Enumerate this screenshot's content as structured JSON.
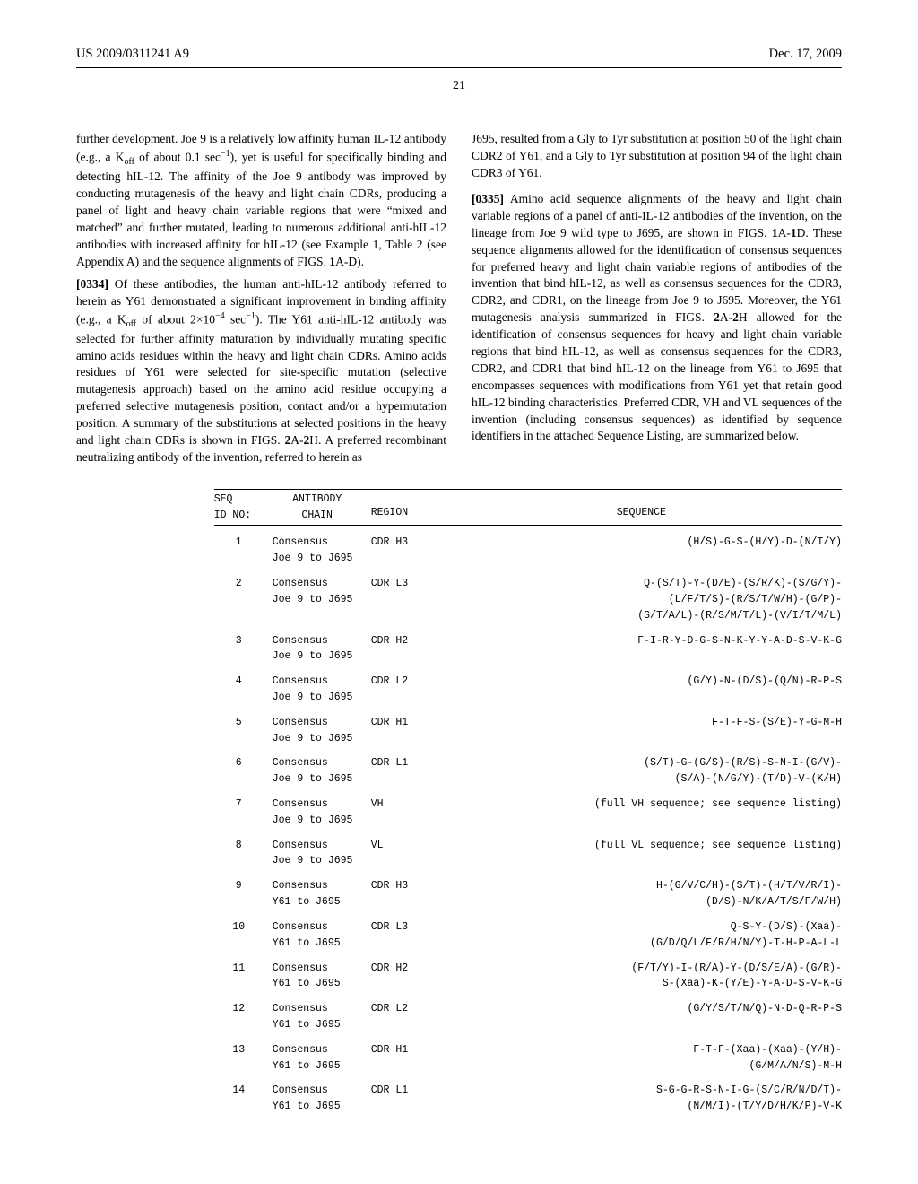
{
  "header": {
    "pubNo": "US 2009/0311241 A9",
    "date": "Dec. 17, 2009"
  },
  "pageNumber": "21",
  "col1": {
    "p1": "further development. Joe 9 is a relatively low affinity human IL-12 antibody (e.g., a K",
    "p1sub": "off",
    "p1b": " of about 0.1 sec",
    "p1sup": "−1",
    "p1c": "), yet is useful for specifically binding and detecting hIL-12. The affinity of the Joe 9 antibody was improved by conducting mutagenesis of the heavy and light chain CDRs, producing a panel of light and heavy chain variable regions that were “mixed and matched” and further mutated, leading to numerous additional anti-hIL-12 antibodies with increased affinity for hIL-12 (see Example 1, Table 2 (see Appendix A) and the sequence alignments of FIGS. ",
    "p1d": "1",
    "p1e": "A-D).",
    "p2num": "[0334]",
    "p2a": " Of these antibodies, the human anti-hIL-12 antibody referred to herein as Y61 demonstrated a significant improvement in binding affinity (e.g., a K",
    "p2sub": "off",
    "p2b": " of about 2×10",
    "p2sup1": "−4",
    "p2c": " sec",
    "p2sup2": "−1",
    "p2d": "). The Y61 anti-hIL-12 antibody was selected for further affinity maturation by individually mutating specific amino acids residues within the heavy and light chain CDRs. Amino acids residues of Y61 were selected for site-specific mutation (selective mutagenesis approach) based on the amino acid residue occupying a preferred selective mutagenesis position, contact and/or a hypermutation position. A summary of the substitutions at selected positions in the heavy and light chain CDRs is shown in FIGS. ",
    "p2e": "2",
    "p2f": "A-",
    "p2g": "2",
    "p2h": "H. A preferred recombinant neutralizing antibody of the invention, referred to herein as"
  },
  "col2": {
    "p1": "J695, resulted from a Gly to Tyr substitution at position 50 of the light chain CDR2 of Y61, and a Gly to Tyr substitution at position 94 of the light chain CDR3 of Y61.",
    "p2num": "[0335]",
    "p2": " Amino acid sequence alignments of the heavy and light chain variable regions of a panel of anti-IL-12 antibodies of the invention, on the lineage from Joe 9 wild type to J695, are shown in FIGS. ",
    "p2a": "1",
    "p2b": "A-",
    "p2c": "1",
    "p2d": "D. These sequence alignments allowed for the identification of consensus sequences for preferred heavy and light chain variable regions of antibodies of the invention that bind hIL-12, as well as consensus sequences for the CDR3, CDR2, and CDR1, on the lineage from Joe 9 to J695. Moreover, the Y61 mutagenesis analysis summarized in FIGS. ",
    "p2e": "2",
    "p2f": "A-",
    "p2g": "2",
    "p2h": "H allowed for the identification of consensus sequences for heavy and light chain variable regions that bind hIL-12, as well as consensus sequences for the CDR3, CDR2, and CDR1 that bind hIL-12 on the lineage from Y61 to J695 that encompasses sequences with modifications from Y61 yet that retain good hIL-12 binding characteristics. Preferred CDR, VH and VL sequences of the invention (including consensus sequences) as identified by sequence identifiers in the attached Sequence Listing, are summarized below."
  },
  "tableHeader": {
    "col1": "SEQ\nID NO:",
    "col2": "ANTIBODY\nCHAIN",
    "col3": "REGION",
    "col4": "SEQUENCE"
  },
  "rows": [
    {
      "id": "1",
      "chain": "Consensus\nJoe 9 to J695",
      "region": "CDR H3",
      "seq": "(H/S)-G-S-(H/Y)-D-(N/T/Y)"
    },
    {
      "id": "2",
      "chain": "Consensus\nJoe 9 to J695",
      "region": "CDR L3",
      "seq": "Q-(S/T)-Y-(D/E)-(S/R/K)-(S/G/Y)-\n(L/F/T/S)-(R/S/T/W/H)-(G/P)-\n(S/T/A/L)-(R/S/M/T/L)-(V/I/T/M/L)"
    },
    {
      "id": "3",
      "chain": "Consensus\nJoe 9 to J695",
      "region": "CDR H2",
      "seq": "F-I-R-Y-D-G-S-N-K-Y-Y-A-D-S-V-K-G"
    },
    {
      "id": "4",
      "chain": "Consensus\nJoe 9 to J695",
      "region": "CDR L2",
      "seq": "(G/Y)-N-(D/S)-(Q/N)-R-P-S"
    },
    {
      "id": "5",
      "chain": "Consensus\nJoe 9 to J695",
      "region": "CDR H1",
      "seq": "F-T-F-S-(S/E)-Y-G-M-H"
    },
    {
      "id": "6",
      "chain": "Consensus\nJoe 9 to J695",
      "region": "CDR L1",
      "seq": "(S/T)-G-(G/S)-(R/S)-S-N-I-(G/V)-\n(S/A)-(N/G/Y)-(T/D)-V-(K/H)"
    },
    {
      "id": "7",
      "chain": "Consensus\nJoe 9 to J695",
      "region": "VH",
      "seq": "(full VH sequence; see sequence listing)"
    },
    {
      "id": "8",
      "chain": "Consensus\nJoe 9 to J695",
      "region": "VL",
      "seq": "(full VL sequence; see sequence listing)"
    },
    {
      "id": "9",
      "chain": "Consensus\nY61 to J695",
      "region": "CDR H3",
      "seq": "H-(G/V/C/H)-(S/T)-(H/T/V/R/I)-\n(D/S)-N/K/A/T/S/F/W/H)"
    },
    {
      "id": "10",
      "chain": "Consensus\nY61 to J695",
      "region": "CDR L3",
      "seq": "Q-S-Y-(D/S)-(Xaa)-\n(G/D/Q/L/F/R/H/N/Y)-T-H-P-A-L-L"
    },
    {
      "id": "11",
      "chain": "Consensus\nY61 to J695",
      "region": "CDR H2",
      "seq": "(F/T/Y)-I-(R/A)-Y-(D/S/E/A)-(G/R)-\nS-(Xaa)-K-(Y/E)-Y-A-D-S-V-K-G"
    },
    {
      "id": "12",
      "chain": "Consensus\nY61 to J695",
      "region": "CDR L2",
      "seq": "(G/Y/S/T/N/Q)-N-D-Q-R-P-S"
    },
    {
      "id": "13",
      "chain": "Consensus\nY61 to J695",
      "region": "CDR H1",
      "seq": "F-T-F-(Xaa)-(Xaa)-(Y/H)-\n(G/M/A/N/S)-M-H"
    },
    {
      "id": "14",
      "chain": "Consensus\nY61 to J695",
      "region": "CDR L1",
      "seq": "S-G-G-R-S-N-I-G-(S/C/R/N/D/T)-\n(N/M/I)-(T/Y/D/H/K/P)-V-K"
    }
  ]
}
